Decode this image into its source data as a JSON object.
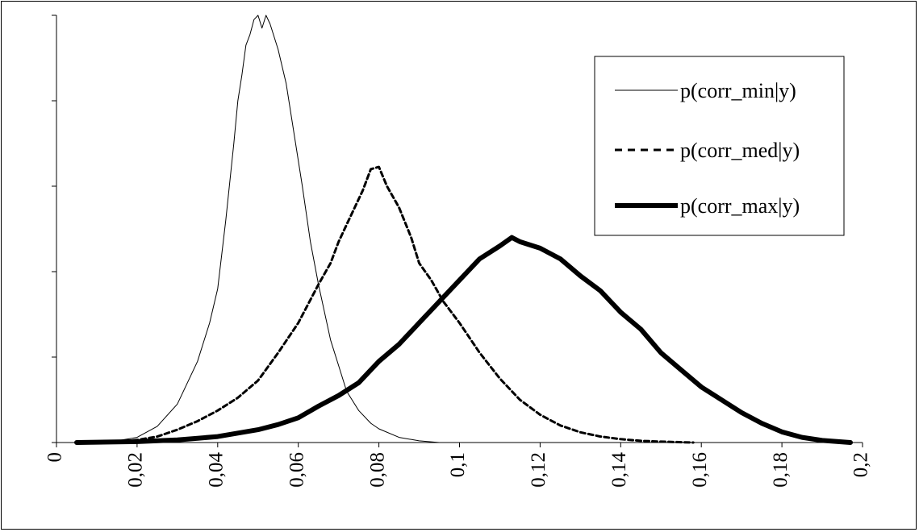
{
  "chart_data": {
    "type": "line",
    "title": "",
    "xlabel": "",
    "ylabel": "",
    "xlim": [
      0,
      0.2
    ],
    "ylim": [
      0,
      1
    ],
    "x_ticks": [
      0,
      0.02,
      0.04,
      0.06,
      0.08,
      0.1,
      0.12,
      0.14,
      0.16,
      0.18,
      0.2
    ],
    "x_tick_labels": [
      "0",
      "0,02",
      "0,04",
      "0,06",
      "0,08",
      "0,1",
      "0,12",
      "0,14",
      "0,16",
      "0,18",
      "0,2"
    ],
    "y_ticks": [
      0,
      0.2,
      0.4,
      0.6,
      0.8,
      1.0
    ],
    "y_tick_labels_visible": false,
    "grid": false,
    "legend": {
      "position": "top-right"
    },
    "series": [
      {
        "name": "p(corr_min|y)",
        "style": "thin-solid",
        "color": "#000000",
        "points": [
          [
            0.004,
            0.0
          ],
          [
            0.01,
            0.001
          ],
          [
            0.015,
            0.004
          ],
          [
            0.02,
            0.012
          ],
          [
            0.025,
            0.038
          ],
          [
            0.03,
            0.09
          ],
          [
            0.035,
            0.19
          ],
          [
            0.038,
            0.28
          ],
          [
            0.04,
            0.36
          ],
          [
            0.042,
            0.52
          ],
          [
            0.044,
            0.7
          ],
          [
            0.045,
            0.8
          ],
          [
            0.046,
            0.86
          ],
          [
            0.047,
            0.93
          ],
          [
            0.048,
            0.955
          ],
          [
            0.049,
            0.99
          ],
          [
            0.05,
            1.0
          ],
          [
            0.051,
            0.97
          ],
          [
            0.052,
            1.0
          ],
          [
            0.053,
            0.98
          ],
          [
            0.055,
            0.92
          ],
          [
            0.057,
            0.84
          ],
          [
            0.059,
            0.72
          ],
          [
            0.061,
            0.6
          ],
          [
            0.063,
            0.47
          ],
          [
            0.065,
            0.37
          ],
          [
            0.068,
            0.24
          ],
          [
            0.07,
            0.18
          ],
          [
            0.072,
            0.12
          ],
          [
            0.075,
            0.075
          ],
          [
            0.078,
            0.045
          ],
          [
            0.08,
            0.032
          ],
          [
            0.085,
            0.012
          ],
          [
            0.09,
            0.004
          ],
          [
            0.095,
            0.0
          ]
        ]
      },
      {
        "name": "p(corr_med|y)",
        "style": "dashed",
        "color": "#000000",
        "points": [
          [
            0.005,
            0.0
          ],
          [
            0.015,
            0.002
          ],
          [
            0.02,
            0.006
          ],
          [
            0.025,
            0.014
          ],
          [
            0.03,
            0.03
          ],
          [
            0.035,
            0.05
          ],
          [
            0.04,
            0.075
          ],
          [
            0.045,
            0.105
          ],
          [
            0.05,
            0.145
          ],
          [
            0.055,
            0.21
          ],
          [
            0.06,
            0.28
          ],
          [
            0.065,
            0.37
          ],
          [
            0.068,
            0.42
          ],
          [
            0.07,
            0.47
          ],
          [
            0.072,
            0.51
          ],
          [
            0.074,
            0.55
          ],
          [
            0.076,
            0.59
          ],
          [
            0.078,
            0.64
          ],
          [
            0.08,
            0.645
          ],
          [
            0.082,
            0.6
          ],
          [
            0.085,
            0.55
          ],
          [
            0.088,
            0.48
          ],
          [
            0.09,
            0.42
          ],
          [
            0.093,
            0.38
          ],
          [
            0.096,
            0.33
          ],
          [
            0.1,
            0.28
          ],
          [
            0.105,
            0.21
          ],
          [
            0.11,
            0.15
          ],
          [
            0.115,
            0.1
          ],
          [
            0.12,
            0.065
          ],
          [
            0.125,
            0.04
          ],
          [
            0.13,
            0.024
          ],
          [
            0.135,
            0.014
          ],
          [
            0.14,
            0.008
          ],
          [
            0.145,
            0.004
          ],
          [
            0.15,
            0.002
          ],
          [
            0.158,
            0.0
          ]
        ]
      },
      {
        "name": "p(corr_max|y)",
        "style": "thick-solid",
        "color": "#000000",
        "points": [
          [
            0.005,
            0.0
          ],
          [
            0.02,
            0.002
          ],
          [
            0.03,
            0.006
          ],
          [
            0.035,
            0.01
          ],
          [
            0.04,
            0.014
          ],
          [
            0.045,
            0.022
          ],
          [
            0.05,
            0.03
          ],
          [
            0.055,
            0.042
          ],
          [
            0.06,
            0.058
          ],
          [
            0.065,
            0.085
          ],
          [
            0.07,
            0.11
          ],
          [
            0.075,
            0.14
          ],
          [
            0.08,
            0.19
          ],
          [
            0.085,
            0.23
          ],
          [
            0.09,
            0.28
          ],
          [
            0.095,
            0.33
          ],
          [
            0.1,
            0.38
          ],
          [
            0.105,
            0.43
          ],
          [
            0.11,
            0.46
          ],
          [
            0.113,
            0.48
          ],
          [
            0.115,
            0.47
          ],
          [
            0.12,
            0.455
          ],
          [
            0.125,
            0.43
          ],
          [
            0.13,
            0.39
          ],
          [
            0.135,
            0.355
          ],
          [
            0.14,
            0.305
          ],
          [
            0.145,
            0.265
          ],
          [
            0.15,
            0.21
          ],
          [
            0.155,
            0.17
          ],
          [
            0.16,
            0.13
          ],
          [
            0.165,
            0.1
          ],
          [
            0.17,
            0.07
          ],
          [
            0.175,
            0.045
          ],
          [
            0.18,
            0.025
          ],
          [
            0.185,
            0.012
          ],
          [
            0.19,
            0.005
          ],
          [
            0.197,
            0.0
          ]
        ]
      }
    ]
  }
}
